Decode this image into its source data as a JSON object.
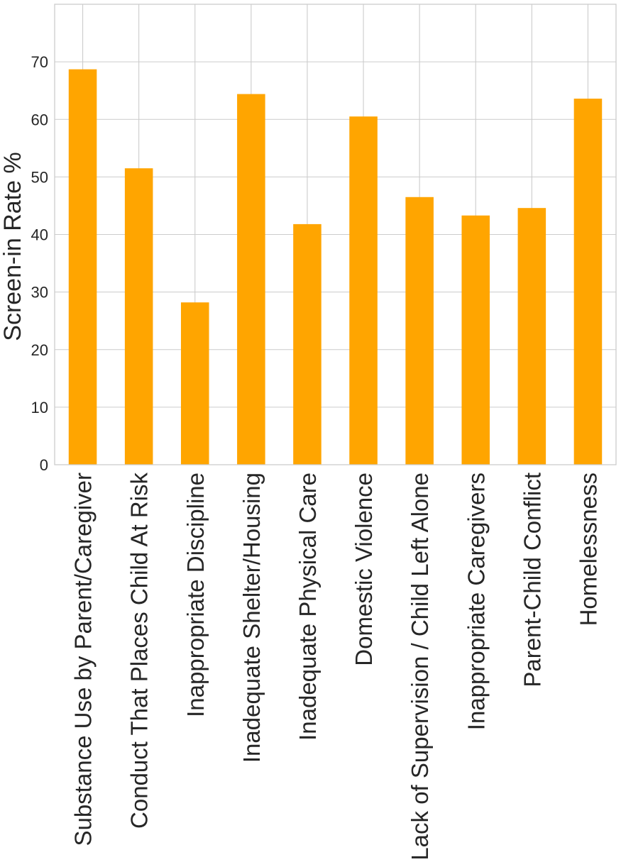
{
  "chart_data": {
    "type": "bar",
    "title": "",
    "xlabel": "",
    "ylabel": "Screen-in Rate %",
    "ylim": [
      0,
      80
    ],
    "yticks": [
      0,
      10,
      20,
      30,
      40,
      50,
      60,
      70
    ],
    "grid": true,
    "categories": [
      "Substance Use by Parent/Caregiver",
      "Conduct That Places Child At Risk",
      "Inappropriate Discipline",
      "Inadequate Shelter/Housing",
      "Inadequate Physical Care",
      "Domestic Violence",
      "Lack of Supervision / Child Left Alone",
      "Inappropriate Caregivers",
      "Parent-Child Conflict",
      "Homelessness"
    ],
    "values": [
      68.7,
      51.5,
      28.2,
      64.4,
      41.8,
      60.5,
      46.5,
      43.3,
      44.6,
      63.6
    ],
    "bar_color": "#ffa500",
    "grid_color": "#cccccc",
    "axis_color": "#cccccc",
    "text_color": "#262626"
  }
}
